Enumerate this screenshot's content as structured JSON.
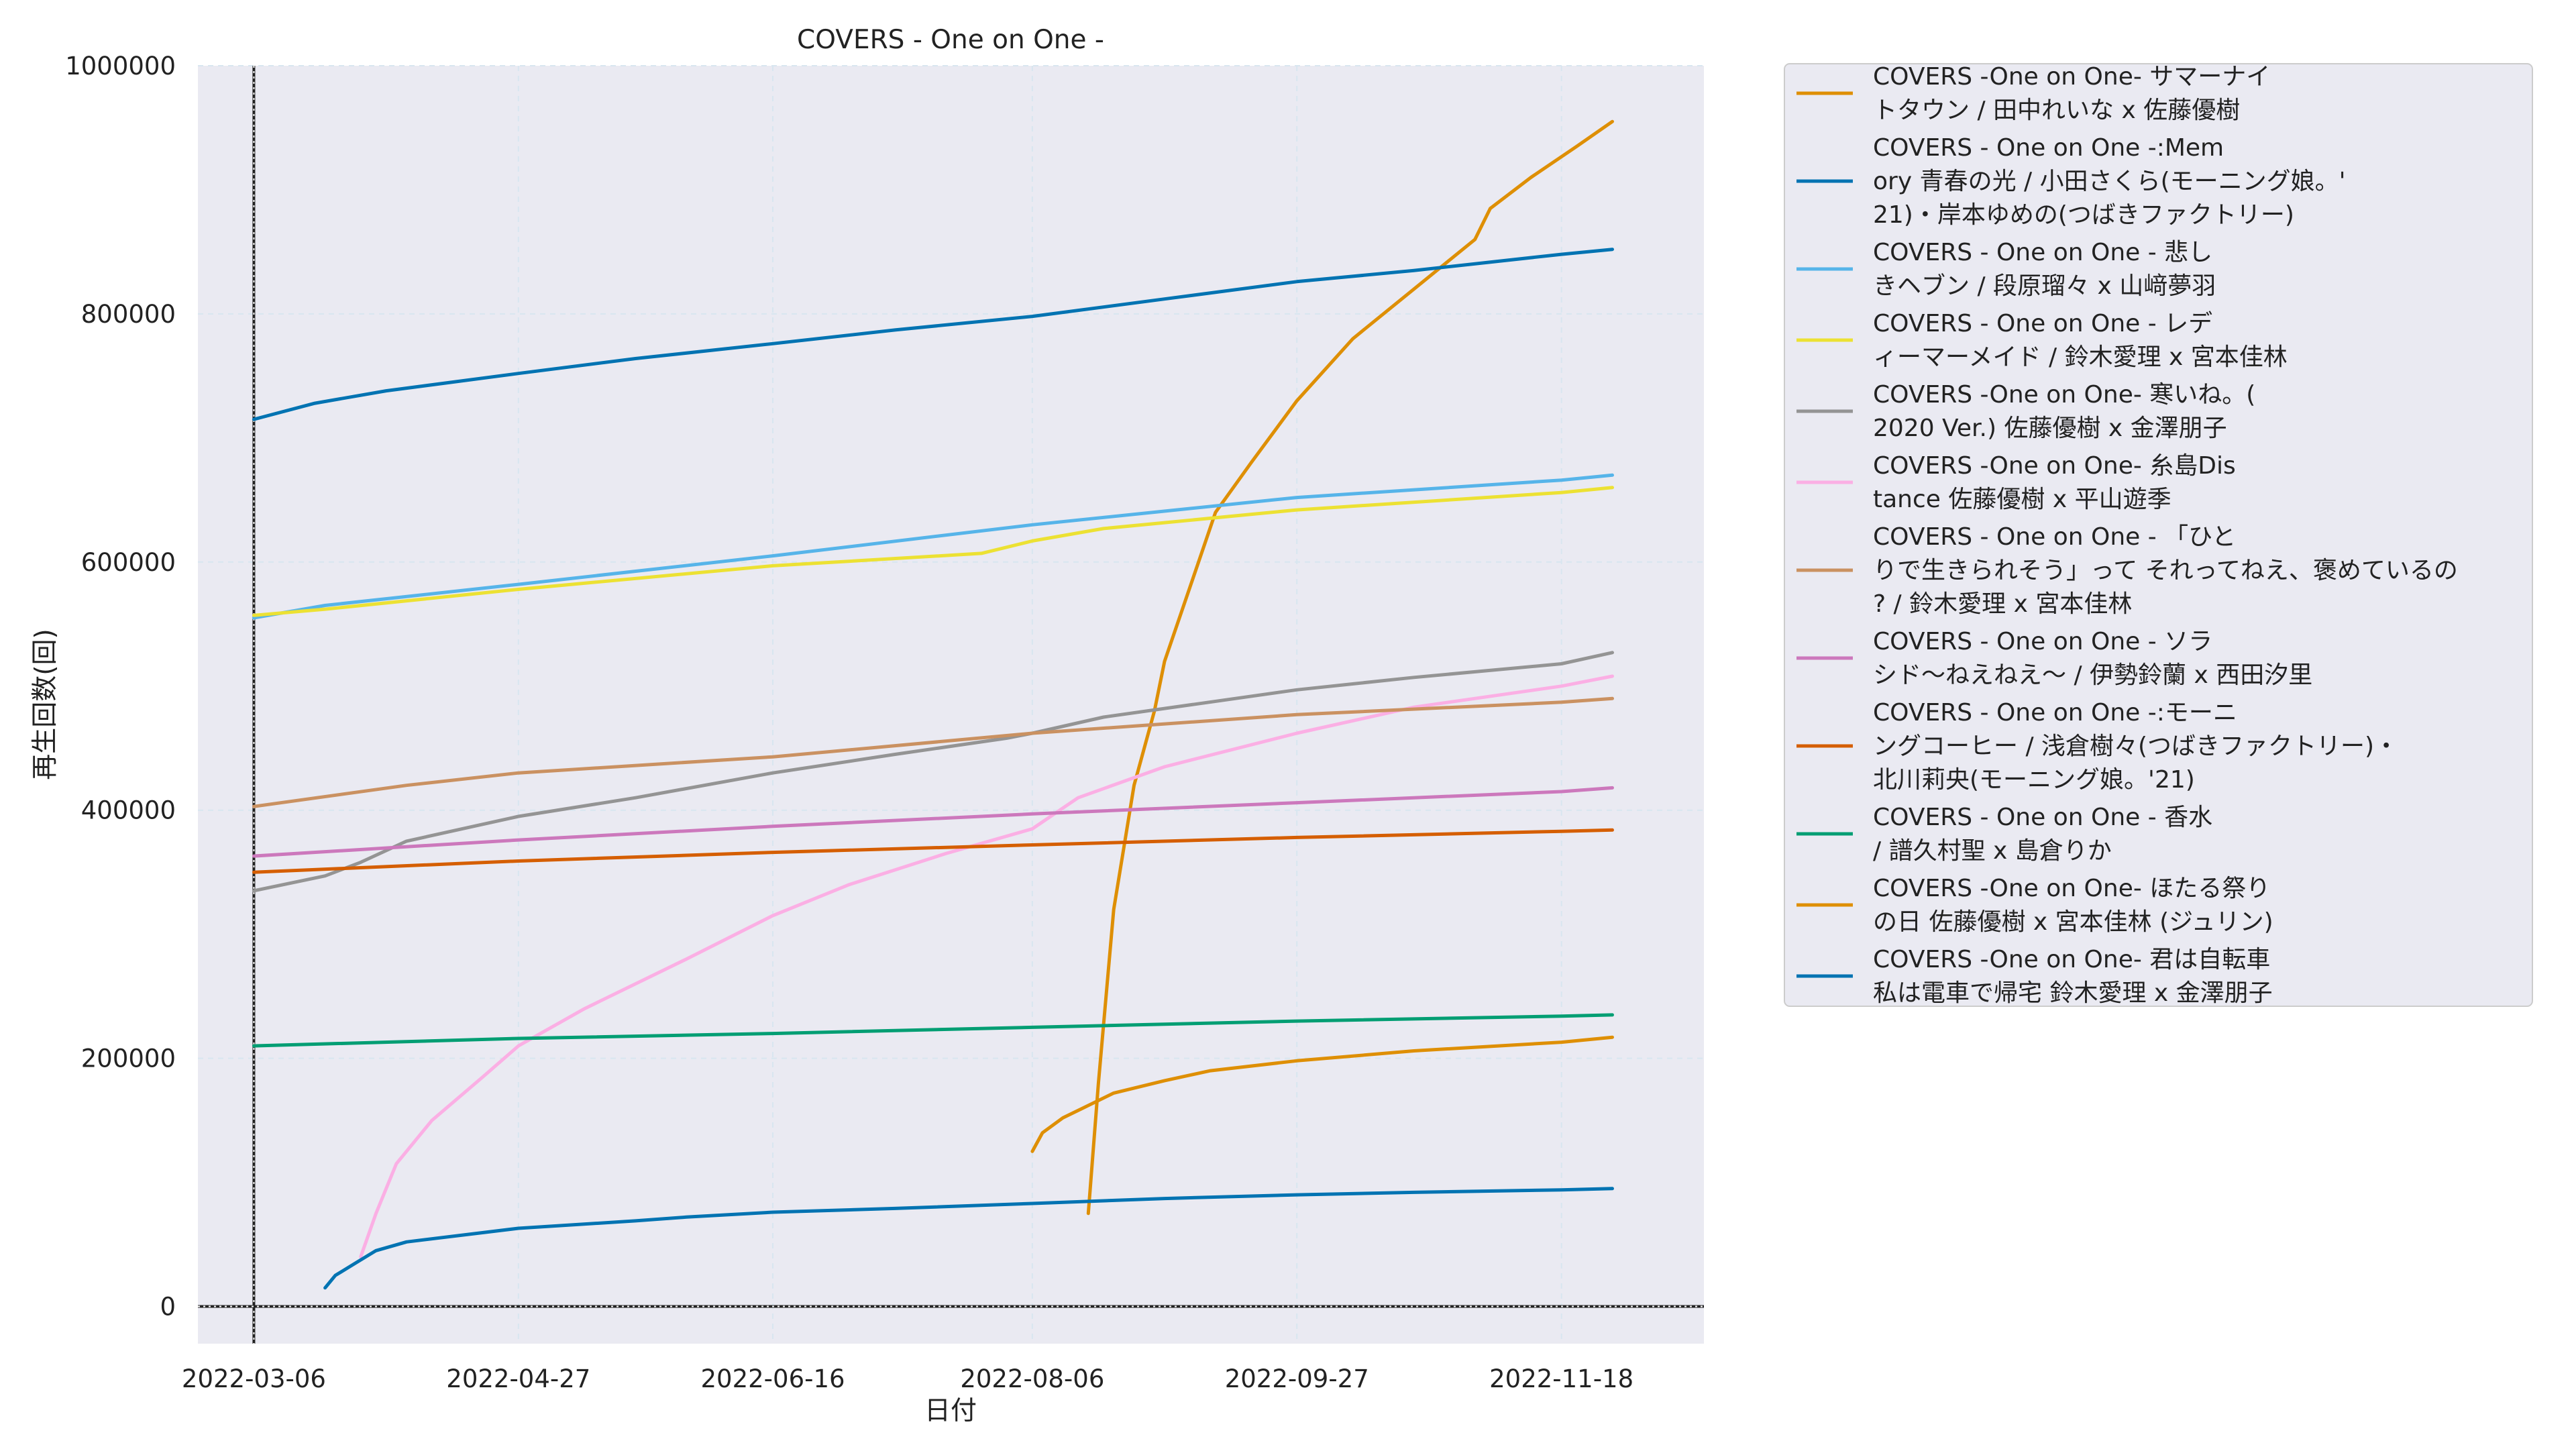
{
  "chart_data": {
    "type": "line",
    "title": "COVERS - One on One -",
    "xlabel": "日付",
    "ylabel": "再生回数(回)",
    "x_ticks": [
      "2022-03-06",
      "2022-04-27",
      "2022-06-16",
      "2022-08-06",
      "2022-09-27",
      "2022-11-18"
    ],
    "y_ticks": [
      0,
      200000,
      400000,
      600000,
      800000,
      1000000
    ],
    "x_range": [
      "2022-02-23",
      "2022-12-16"
    ],
    "y_range": [
      -30000,
      1000000
    ],
    "grid": true,
    "legend_position": "outside-right",
    "reference_lines": {
      "x": "2022-03-06",
      "y": 0
    },
    "series": [
      {
        "name": "COVERS -One on One- サマーナイトタウン / 田中れいな x 佐藤優樹",
        "color": "#de8f05",
        "legend_lines": [
          "COVERS -One on One- サマーナイ",
          "トタウン / 田中れいな x 佐藤優樹"
        ],
        "points": [
          [
            "2022-08-17",
            75000
          ],
          [
            "2022-08-19",
            180000
          ],
          [
            "2022-08-22",
            320000
          ],
          [
            "2022-08-26",
            420000
          ],
          [
            "2022-08-30",
            480000
          ],
          [
            "2022-09-01",
            520000
          ],
          [
            "2022-09-06",
            580000
          ],
          [
            "2022-09-11",
            640000
          ],
          [
            "2022-09-18",
            680000
          ],
          [
            "2022-09-27",
            730000
          ],
          [
            "2022-10-08",
            780000
          ],
          [
            "2022-10-20",
            820000
          ],
          [
            "2022-11-01",
            860000
          ],
          [
            "2022-11-04",
            885000
          ],
          [
            "2022-11-12",
            910000
          ],
          [
            "2022-11-21",
            935000
          ],
          [
            "2022-11-28",
            955000
          ]
        ]
      },
      {
        "name": "COVERS - One on One -:Memory 青春の光 / 小田さくら(モーニング娘。'21)・岸本ゆめの(つばきファクトリー)",
        "color": "#0173b2",
        "legend_lines": [
          "COVERS - One on One -:Mem",
          "ory 青春の光 / 小田さくら(モーニング娘。'",
          "21)・岸本ゆめの(つばきファクトリー)"
        ],
        "points": [
          [
            "2022-03-06",
            715000
          ],
          [
            "2022-03-18",
            728000
          ],
          [
            "2022-04-01",
            738000
          ],
          [
            "2022-04-27",
            752000
          ],
          [
            "2022-05-20",
            764000
          ],
          [
            "2022-06-16",
            776000
          ],
          [
            "2022-07-10",
            787000
          ],
          [
            "2022-08-06",
            798000
          ],
          [
            "2022-09-01",
            812000
          ],
          [
            "2022-09-27",
            826000
          ],
          [
            "2022-10-20",
            835000
          ],
          [
            "2022-11-18",
            848000
          ],
          [
            "2022-11-28",
            852000
          ]
        ]
      },
      {
        "name": "COVERS - One on One - 悲しきヘブン / 段原瑠々 x 山﨑夢羽",
        "color": "#56b4e9",
        "legend_lines": [
          "COVERS - One on One -  悲し",
          "きヘブン / 段原瑠々 x 山﨑夢羽"
        ],
        "points": [
          [
            "2022-03-06",
            555000
          ],
          [
            "2022-03-20",
            565000
          ],
          [
            "2022-04-27",
            582000
          ],
          [
            "2022-06-16",
            605000
          ],
          [
            "2022-08-06",
            630000
          ],
          [
            "2022-09-27",
            652000
          ],
          [
            "2022-11-18",
            666000
          ],
          [
            "2022-11-28",
            670000
          ]
        ]
      },
      {
        "name": "COVERS - One on One - レディーマーメイド / 鈴木愛理 x 宮本佳林",
        "color": "#ece133",
        "legend_lines": [
          "COVERS - One on One -  レデ",
          "ィーマーメイド / 鈴木愛理 x 宮本佳林"
        ],
        "points": [
          [
            "2022-03-06",
            557000
          ],
          [
            "2022-03-20",
            562000
          ],
          [
            "2022-04-27",
            578000
          ],
          [
            "2022-06-16",
            597000
          ],
          [
            "2022-07-27",
            607000
          ],
          [
            "2022-08-06",
            617000
          ],
          [
            "2022-08-20",
            627000
          ],
          [
            "2022-09-27",
            642000
          ],
          [
            "2022-11-18",
            656000
          ],
          [
            "2022-11-28",
            660000
          ]
        ]
      },
      {
        "name": "COVERS -One on One- 寒いね。(2020 Ver.) 佐藤優樹 x 金澤朋子",
        "color": "#949494",
        "legend_lines": [
          "COVERS -One on One- 寒いね。(",
          "2020 Ver.) 佐藤優樹 x 金澤朋子"
        ],
        "points": [
          [
            "2022-03-06",
            335000
          ],
          [
            "2022-03-20",
            347000
          ],
          [
            "2022-03-27",
            358000
          ],
          [
            "2022-04-05",
            375000
          ],
          [
            "2022-04-27",
            395000
          ],
          [
            "2022-05-20",
            410000
          ],
          [
            "2022-06-16",
            430000
          ],
          [
            "2022-07-10",
            445000
          ],
          [
            "2022-08-01",
            458000
          ],
          [
            "2022-08-06",
            462000
          ],
          [
            "2022-08-20",
            475000
          ],
          [
            "2022-09-27",
            497000
          ],
          [
            "2022-10-20",
            507000
          ],
          [
            "2022-11-18",
            518000
          ],
          [
            "2022-11-28",
            527000
          ]
        ]
      },
      {
        "name": "COVERS -One on One- 糸島Distance 佐藤優樹 x 平山遊季",
        "color": "#fbafe4",
        "legend_lines": [
          "COVERS -One on One- 糸島Dis",
          "tance 佐藤優樹 x 平山遊季"
        ],
        "points": [
          [
            "2022-03-27",
            40000
          ],
          [
            "2022-03-30",
            75000
          ],
          [
            "2022-04-03",
            115000
          ],
          [
            "2022-04-10",
            150000
          ],
          [
            "2022-04-20",
            185000
          ],
          [
            "2022-04-27",
            210000
          ],
          [
            "2022-05-10",
            240000
          ],
          [
            "2022-05-30",
            280000
          ],
          [
            "2022-06-16",
            315000
          ],
          [
            "2022-07-01",
            340000
          ],
          [
            "2022-07-20",
            365000
          ],
          [
            "2022-08-06",
            385000
          ],
          [
            "2022-08-15",
            410000
          ],
          [
            "2022-09-01",
            435000
          ],
          [
            "2022-09-27",
            462000
          ],
          [
            "2022-10-20",
            483000
          ],
          [
            "2022-11-18",
            500000
          ],
          [
            "2022-11-28",
            508000
          ]
        ]
      },
      {
        "name": "COVERS - One on One - 「ひとりで生きられそう」って それってねえ、褒めているの? / 鈴木愛理 x 宮本佳林",
        "color": "#ca9161",
        "legend_lines": [
          "COVERS - One on One - 「ひと",
          "りで生きられそう」って それってねえ、褒めているの",
          "? / 鈴木愛理 x 宮本佳林"
        ],
        "points": [
          [
            "2022-03-06",
            403000
          ],
          [
            "2022-04-05",
            420000
          ],
          [
            "2022-04-27",
            430000
          ],
          [
            "2022-06-16",
            443000
          ],
          [
            "2022-08-06",
            462000
          ],
          [
            "2022-09-27",
            477000
          ],
          [
            "2022-11-18",
            487000
          ],
          [
            "2022-11-28",
            490000
          ]
        ]
      },
      {
        "name": "COVERS - One on One - ソラシド〜ねえねえ〜 / 伊勢鈴蘭 x 西田汐里",
        "color": "#cc78bc",
        "legend_lines": [
          "COVERS - One on One -  ソラ",
          "シド〜ねえねえ〜 / 伊勢鈴蘭 x 西田汐里"
        ],
        "points": [
          [
            "2022-03-06",
            363000
          ],
          [
            "2022-04-27",
            376000
          ],
          [
            "2022-06-16",
            387000
          ],
          [
            "2022-08-06",
            397000
          ],
          [
            "2022-09-27",
            406000
          ],
          [
            "2022-11-18",
            415000
          ],
          [
            "2022-11-28",
            418000
          ]
        ]
      },
      {
        "name": "COVERS - One on One -:モーニングコーヒー / 浅倉樹々(つばきファクトリー)・北川莉央(モーニング娘。'21)",
        "color": "#d55e00",
        "legend_lines": [
          "COVERS - One on One -:モーニ",
          "ングコーヒー / 浅倉樹々(つばきファクトリー)・",
          "北川莉央(モーニング娘。'21)"
        ],
        "points": [
          [
            "2022-03-06",
            350000
          ],
          [
            "2022-04-27",
            359000
          ],
          [
            "2022-06-16",
            366000
          ],
          [
            "2022-08-06",
            372000
          ],
          [
            "2022-09-27",
            378000
          ],
          [
            "2022-11-18",
            383000
          ],
          [
            "2022-11-28",
            384000
          ]
        ]
      },
      {
        "name": "COVERS - One on One - 香水 / 譜久村聖 x 島倉りか",
        "color": "#029e73",
        "legend_lines": [
          "COVERS - One on One -  香水",
          " / 譜久村聖 x 島倉りか"
        ],
        "points": [
          [
            "2022-03-06",
            210000
          ],
          [
            "2022-04-27",
            216000
          ],
          [
            "2022-06-16",
            220000
          ],
          [
            "2022-08-06",
            225000
          ],
          [
            "2022-09-27",
            230000
          ],
          [
            "2022-11-18",
            234000
          ],
          [
            "2022-11-28",
            235000
          ]
        ]
      },
      {
        "name": "COVERS -One on One- ほたる祭りの日 佐藤優樹 x 宮本佳林 (ジュリン)",
        "color": "#de8f05",
        "legend_lines": [
          "COVERS -One on One- ほたる祭り",
          "の日 佐藤優樹 x 宮本佳林 (ジュリン)"
        ],
        "points": [
          [
            "2022-08-06",
            125000
          ],
          [
            "2022-08-08",
            140000
          ],
          [
            "2022-08-12",
            152000
          ],
          [
            "2022-08-16",
            160000
          ],
          [
            "2022-08-22",
            172000
          ],
          [
            "2022-09-01",
            182000
          ],
          [
            "2022-09-10",
            190000
          ],
          [
            "2022-09-27",
            198000
          ],
          [
            "2022-10-20",
            206000
          ],
          [
            "2022-11-18",
            213000
          ],
          [
            "2022-11-28",
            217000
          ]
        ]
      },
      {
        "name": "COVERS -One on One- 君は自転車 私は電車で帰宅 鈴木愛理 x 金澤朋子",
        "color": "#0173b2",
        "legend_lines": [
          "COVERS -One on One- 君は自転車",
          " 私は電車で帰宅 鈴木愛理 x 金澤朋子"
        ],
        "points": [
          [
            "2022-03-20",
            15000
          ],
          [
            "2022-03-22",
            25000
          ],
          [
            "2022-03-26",
            35000
          ],
          [
            "2022-03-30",
            45000
          ],
          [
            "2022-04-05",
            52000
          ],
          [
            "2022-04-27",
            63000
          ],
          [
            "2022-05-20",
            69000
          ],
          [
            "2022-05-30",
            72000
          ],
          [
            "2022-06-16",
            76000
          ],
          [
            "2022-07-10",
            79000
          ],
          [
            "2022-08-06",
            83000
          ],
          [
            "2022-09-01",
            87000
          ],
          [
            "2022-09-27",
            90000
          ],
          [
            "2022-10-20",
            92000
          ],
          [
            "2022-11-18",
            94000
          ],
          [
            "2022-11-28",
            95000
          ]
        ]
      }
    ]
  }
}
